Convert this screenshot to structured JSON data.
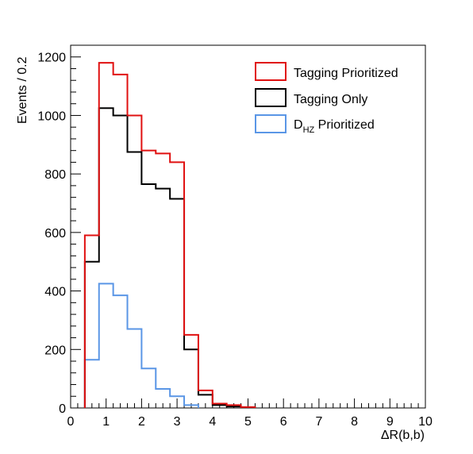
{
  "chart_data": {
    "type": "histogram",
    "xlabel": "ΔR(b,b)",
    "ylabel": "Events / 0.2",
    "xlim": [
      0,
      10
    ],
    "ylim": [
      0,
      1240
    ],
    "bin_width": 0.2,
    "x_ticks": [
      "0",
      "1",
      "2",
      "3",
      "4",
      "5",
      "6",
      "7",
      "8",
      "9",
      "10"
    ],
    "y_ticks": [
      "0",
      "200",
      "400",
      "600",
      "800",
      "1000",
      "1200"
    ],
    "legend_position": "top-right",
    "grid": false,
    "series": [
      {
        "name": "Tagging Prioritized",
        "color": "#e01010",
        "bins_start": [
          0.4,
          0.6,
          0.8,
          1.0,
          1.2,
          1.4,
          1.6,
          1.8,
          2.0,
          2.2,
          2.4,
          2.6,
          2.8,
          3.0,
          3.2,
          3.4,
          3.6,
          3.8,
          4.0,
          4.2,
          4.4,
          4.6,
          4.8,
          5.0
        ],
        "values": [
          590,
          590,
          1180,
          1180,
          1140,
          1140,
          1000,
          1000,
          880,
          880,
          870,
          870,
          840,
          840,
          250,
          250,
          60,
          60,
          15,
          15,
          10,
          10,
          3,
          3
        ]
      },
      {
        "name": "Tagging Only",
        "color": "#000000",
        "bins_start": [
          0.4,
          0.6,
          0.8,
          1.0,
          1.2,
          1.4,
          1.6,
          1.8,
          2.0,
          2.2,
          2.4,
          2.6,
          2.8,
          3.0,
          3.2,
          3.4,
          3.6,
          3.8,
          4.0,
          4.2,
          4.4,
          4.6,
          4.8,
          5.0
        ],
        "values": [
          500,
          500,
          1025,
          1025,
          1000,
          1000,
          875,
          875,
          765,
          765,
          750,
          750,
          715,
          715,
          200,
          200,
          45,
          45,
          10,
          10,
          5,
          5,
          2,
          2
        ]
      },
      {
        "name": "D_HZ Prioritized",
        "label_main": "D",
        "label_sub": "HZ",
        "label_rest": " Prioritized",
        "color": "#5a96e6",
        "bins_start": [
          0.4,
          0.6,
          0.8,
          1.0,
          1.2,
          1.4,
          1.6,
          1.8,
          2.0,
          2.2,
          2.4,
          2.6,
          2.8,
          3.0,
          3.2,
          3.4
        ],
        "values": [
          165,
          165,
          425,
          425,
          385,
          385,
          270,
          270,
          135,
          135,
          65,
          65,
          40,
          40,
          10,
          10
        ]
      }
    ]
  }
}
